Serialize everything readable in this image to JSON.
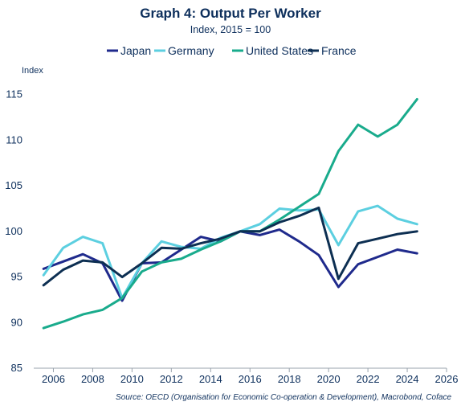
{
  "chart_data": {
    "type": "line",
    "title": "Graph 4: Output Per Worker",
    "subtitle": "Index, 2015 = 100",
    "ylabel": "Index",
    "xlabel": "",
    "source": "Source: OECD (Organisation for Economic Co-operation & Development), Macrobond, Coface",
    "legend_position": "top",
    "grid": false,
    "xlim": [
      2005,
      2026
    ],
    "ylim": [
      85,
      117
    ],
    "x_ticks": [
      2006,
      2008,
      2010,
      2012,
      2014,
      2016,
      2018,
      2020,
      2022,
      2024,
      2026
    ],
    "y_ticks": [
      85,
      90,
      95,
      100,
      105,
      110,
      115
    ],
    "x": [
      2005.5,
      2006.5,
      2007.5,
      2008.5,
      2009.5,
      2010.5,
      2011.5,
      2012.5,
      2013.5,
      2014.5,
      2015.5,
      2016.5,
      2017.5,
      2018.5,
      2019.5,
      2020.5,
      2021.5,
      2022.5,
      2023.5,
      2024.5
    ],
    "series": [
      {
        "name": "Japan",
        "color": "#1f2a8c",
        "values": [
          95.9,
          96.7,
          97.5,
          96.5,
          92.4,
          96.5,
          96.6,
          98.0,
          99.4,
          98.9,
          100.0,
          99.6,
          100.2,
          98.9,
          97.4,
          93.9,
          96.4,
          97.2,
          98.0,
          97.6
        ]
      },
      {
        "name": "Germany",
        "color": "#5ccfe0",
        "values": [
          95.2,
          98.2,
          99.4,
          98.7,
          92.7,
          96.5,
          98.9,
          98.3,
          98.1,
          99.3,
          100.0,
          100.8,
          102.5,
          102.3,
          102.4,
          98.5,
          102.2,
          102.8,
          101.4,
          100.8
        ]
      },
      {
        "name": "United States",
        "color": "#19ab8c",
        "values": [
          89.4,
          90.1,
          90.9,
          91.4,
          92.7,
          95.6,
          96.6,
          97.0,
          98.0,
          98.9,
          100.0,
          100.0,
          101.3,
          102.7,
          104.1,
          108.8,
          111.7,
          110.4,
          111.7,
          114.5
        ]
      },
      {
        "name": "France",
        "color": "#0d2f52",
        "values": [
          94.1,
          95.8,
          96.8,
          96.6,
          95.0,
          96.5,
          98.2,
          98.1,
          98.7,
          99.2,
          100.0,
          100.0,
          101.0,
          101.7,
          102.6,
          94.8,
          98.7,
          99.2,
          99.7,
          100.0
        ]
      }
    ]
  }
}
